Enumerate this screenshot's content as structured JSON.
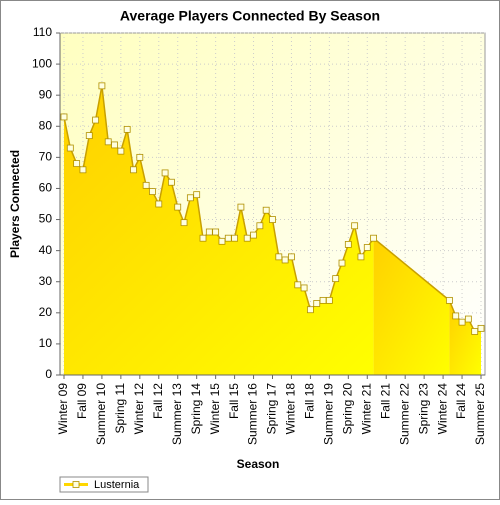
{
  "chart_data": {
    "type": "area",
    "title": "Average Players Connected By Season",
    "x_label": "Season",
    "y_label": "Players Connected",
    "categories": [
      "Winter 09",
      null,
      null,
      "Fall 09",
      null,
      null,
      "Summer 10",
      null,
      null,
      "Spring 11",
      null,
      null,
      "Winter 12",
      null,
      null,
      "Fall 12",
      null,
      null,
      "Summer 13",
      null,
      null,
      "Spring 14",
      null,
      null,
      "Winter 15",
      null,
      null,
      "Fall 15",
      null,
      null,
      "Summer 16",
      null,
      null,
      "Spring 17",
      null,
      null,
      "Winter 18",
      null,
      null,
      "Fall 18",
      null,
      null,
      "Summer 19",
      null,
      null,
      "Spring 20",
      null,
      null,
      "Winter 21",
      null,
      null,
      "Fall 21",
      null,
      null,
      "Summer 22",
      null,
      null,
      "Spring 23",
      null,
      null,
      "Winter 24",
      null,
      null,
      "Fall 24",
      null,
      null,
      "Summer 25"
    ],
    "series": [
      {
        "name": "Lusternia",
        "color": "#ffd700",
        "values": [
          83,
          73,
          68,
          66,
          77,
          82,
          93,
          75,
          74,
          72,
          79,
          66,
          70,
          61,
          59,
          55,
          65,
          62,
          54,
          49,
          57,
          58,
          44,
          46,
          46,
          43,
          44,
          44,
          54,
          44,
          45,
          48,
          53,
          50,
          38,
          37,
          38,
          29,
          28,
          21,
          23,
          24,
          24,
          31,
          36,
          42,
          48,
          38,
          41,
          44,
          null,
          null,
          null,
          null,
          null,
          null,
          null,
          null,
          null,
          null,
          null,
          24,
          19,
          17,
          18,
          14,
          15
        ]
      }
    ],
    "ylim": [
      0,
      110
    ],
    "yticks": [
      0,
      10,
      20,
      30,
      40,
      50,
      60,
      70,
      80,
      90,
      100,
      110
    ],
    "grid": true,
    "legend": "bottom-left"
  }
}
